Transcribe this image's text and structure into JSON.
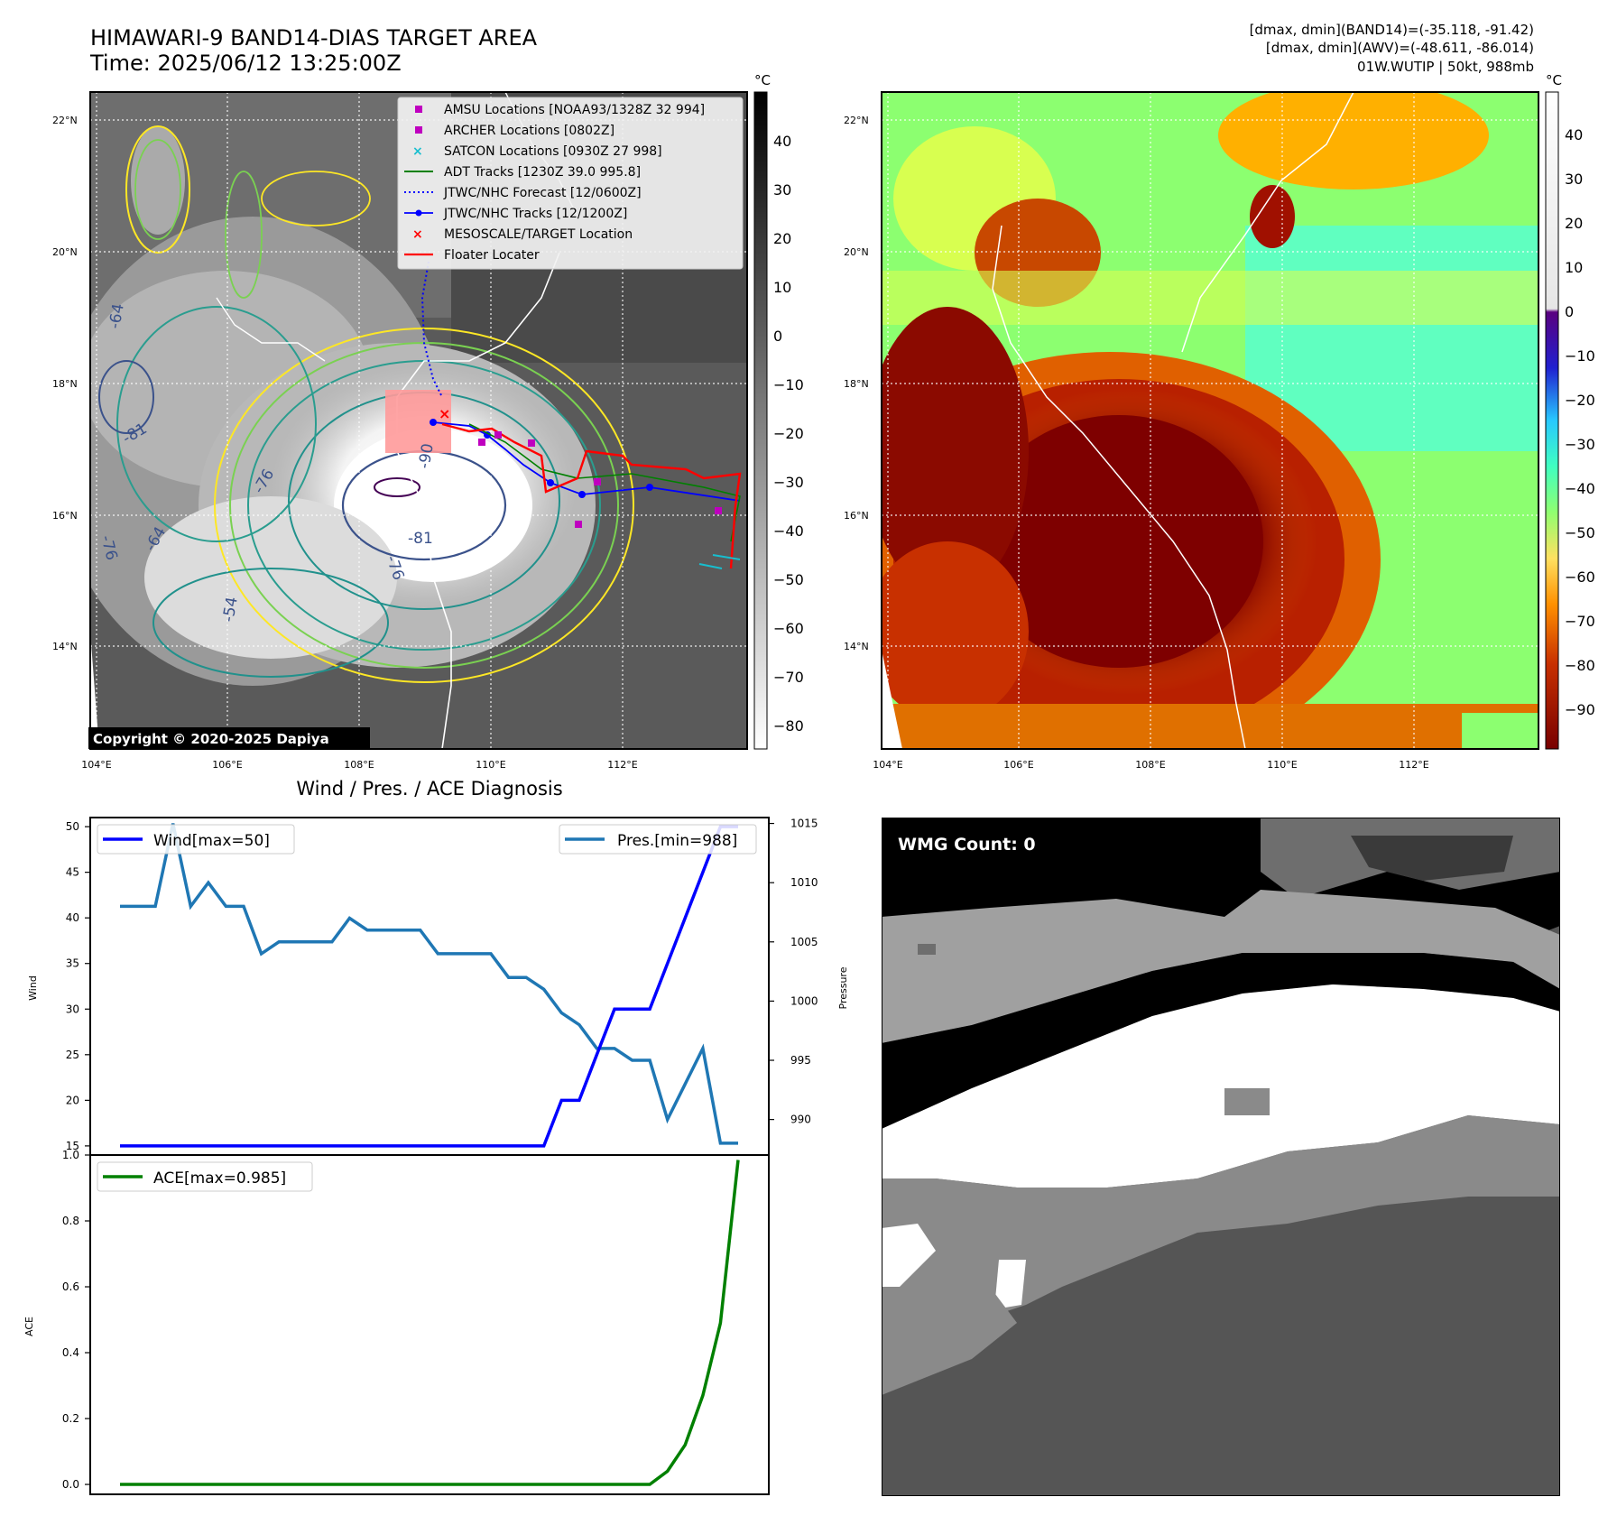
{
  "header": {
    "title_line1": "HIMAWARI-9 BAND14-DIAS TARGET AREA",
    "title_line2": "Time: 2025/06/12 13:25:00Z",
    "info_line1": "[dmax, dmin](BAND14)=(-35.118, -91.42)",
    "info_line2": "[dmax, dmin](AWV)=(-48.611, -86.014)",
    "info_line3": "01W.WUTIP | 50kt, 988mb"
  },
  "map_ir": {
    "copyright": "Copyright © 2020-2025 Dapiya",
    "lat_ticks": [
      "22°N",
      "20°N",
      "18°N",
      "16°N",
      "14°N"
    ],
    "lon_ticks": [
      "104°E",
      "106°E",
      "108°E",
      "110°E",
      "112°E"
    ],
    "contour_labels": [
      "-90",
      "-81",
      "-76",
      "-76",
      "-64",
      "-81",
      "-54",
      "-64",
      "-76"
    ],
    "legend": [
      {
        "label": "AMSU Locations [NOAA93/1328Z 32 994]",
        "color": "#bf00bf",
        "marker": "square"
      },
      {
        "label": "ARCHER Locations [0802Z]",
        "color": "#bf00bf",
        "marker": "square"
      },
      {
        "label": "SATCON Locations [0930Z 27 998]",
        "color": "#17becf",
        "marker": "x"
      },
      {
        "label": "ADT Tracks [1230Z 39.0 995.8]",
        "color": "#008000",
        "marker": "line"
      },
      {
        "label": "JTWC/NHC Forecast [12/0600Z]",
        "color": "#0000ff",
        "marker": "dotted"
      },
      {
        "label": "JTWC/NHC Tracks [12/1200Z]",
        "color": "#0000ff",
        "marker": "line-dot"
      },
      {
        "label": "MESOSCALE/TARGET Location",
        "color": "#ff0000",
        "marker": "x"
      },
      {
        "label": "Floater Locater",
        "color": "#ff0000",
        "marker": "line"
      }
    ],
    "colorbar": {
      "unit": "°C",
      "ticks": [
        "40",
        "30",
        "20",
        "10",
        "0",
        "−10",
        "−20",
        "−30",
        "−40",
        "−50",
        "−60",
        "−70",
        "−80"
      ]
    }
  },
  "map_awv": {
    "lat_ticks": [
      "22°N",
      "20°N",
      "18°N",
      "16°N",
      "14°N"
    ],
    "lon_ticks": [
      "104°E",
      "106°E",
      "108°E",
      "110°E",
      "112°E"
    ],
    "colorbar": {
      "unit": "°C",
      "ticks": [
        "40",
        "30",
        "20",
        "10",
        "0",
        "−10",
        "−20",
        "−30",
        "−40",
        "−50",
        "−60",
        "−70",
        "−80",
        "−90"
      ]
    }
  },
  "diagnosis": {
    "title": "Wind / Pres. / ACE Diagnosis",
    "wind_ylabel": "Wind",
    "pres_ylabel": "Pressure",
    "ace_ylabel": "ACE",
    "wind_legend": "Wind[max=50]",
    "pres_legend": "Pres.[min=988]",
    "ace_legend": "ACE[max=0.985]",
    "colors": {
      "wind": "#0000ff",
      "pres": "#1f77b4",
      "ace": "#008000"
    }
  },
  "wmg": {
    "label": "WMG Count: 0"
  },
  "chart_data": [
    {
      "type": "line",
      "title": "Wind / Pres. / ACE Diagnosis",
      "ylabel": "Wind",
      "ylim": [
        14,
        51
      ],
      "yticks": [
        15,
        20,
        25,
        30,
        35,
        40,
        45,
        50
      ],
      "series": [
        {
          "name": "Wind[max=50]",
          "values": [
            15,
            15,
            15,
            15,
            15,
            15,
            15,
            15,
            15,
            15,
            15,
            15,
            15,
            15,
            15,
            15,
            15,
            15,
            15,
            15,
            15,
            15,
            15,
            15,
            15,
            20,
            20,
            25,
            30,
            30,
            30,
            35,
            40,
            45,
            50,
            50
          ]
        }
      ]
    },
    {
      "type": "line",
      "ylabel": "Pressure",
      "ylim": [
        987,
        1015.5
      ],
      "yticks": [
        990,
        995,
        1000,
        1005,
        1010,
        1015
      ],
      "series": [
        {
          "name": "Pres.[min=988]",
          "values": [
            1008,
            1008,
            1008,
            1015,
            1008,
            1010,
            1008,
            1008,
            1004,
            1005,
            1005,
            1005,
            1005,
            1007,
            1006,
            1006,
            1006,
            1006,
            1004,
            1004,
            1004,
            1004,
            1002,
            1002,
            1001,
            999,
            998,
            996,
            996,
            995,
            995,
            990,
            993,
            996,
            988,
            988
          ]
        }
      ]
    },
    {
      "type": "line",
      "ylabel": "ACE",
      "ylim": [
        -0.03,
        1.0
      ],
      "yticks": [
        0.0,
        0.2,
        0.4,
        0.6,
        0.8,
        1.0
      ],
      "series": [
        {
          "name": "ACE[max=0.985]",
          "values": [
            0,
            0,
            0,
            0,
            0,
            0,
            0,
            0,
            0,
            0,
            0,
            0,
            0,
            0,
            0,
            0,
            0,
            0,
            0,
            0,
            0,
            0,
            0,
            0,
            0,
            0,
            0,
            0,
            0,
            0,
            0,
            0.04,
            0.12,
            0.27,
            0.49,
            0.985
          ]
        }
      ]
    }
  ]
}
